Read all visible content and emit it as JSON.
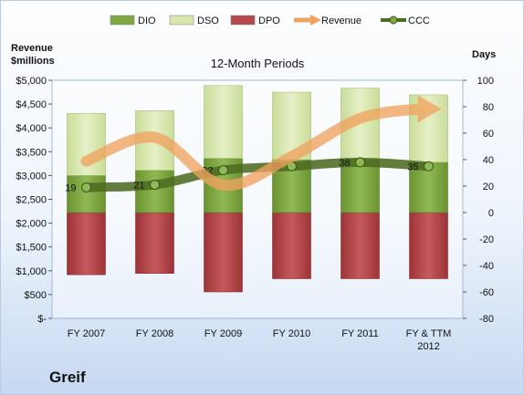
{
  "chart_data": {
    "type": "bar",
    "title": "12-Month Periods",
    "company": "Greif",
    "left_axis_label": [
      "Revenue",
      "$millions"
    ],
    "right_axis_label": "Days",
    "categories": [
      [
        "FY 2007"
      ],
      [
        "FY 2008"
      ],
      [
        "FY 2009"
      ],
      [
        "FY 2010"
      ],
      [
        "FY 2011"
      ],
      [
        "FY & TTM",
        "2012"
      ]
    ],
    "left_axis": {
      "min": 0,
      "max": 5000,
      "step": 500,
      "tick_labels": [
        "$-",
        "$500",
        "$1,000",
        "$1,500",
        "$2,000",
        "$2,500",
        "$3,000",
        "$3,500",
        "$4,000",
        "$4,500",
        "$5,000"
      ]
    },
    "right_axis": {
      "min": -80,
      "max": 100,
      "step": 20,
      "tick_labels": [
        "-80",
        "-60",
        "-40",
        "-20",
        "0",
        "20",
        "40",
        "60",
        "80",
        "100"
      ]
    },
    "legend": [
      {
        "name": "DIO",
        "kind": "bar",
        "color": "#7fa843"
      },
      {
        "name": "DSO",
        "kind": "bar",
        "color": "#d6e6ad"
      },
      {
        "name": "DPO",
        "kind": "bar",
        "color": "#b7484b"
      },
      {
        "name": "Revenue",
        "kind": "arrow",
        "color": "#f0a35f"
      },
      {
        "name": "CCC",
        "kind": "line",
        "color": "#4f6b22"
      }
    ],
    "series": [
      {
        "name": "DIO",
        "unit": "days",
        "values": [
          28,
          32,
          41,
          40,
          40,
          38
        ]
      },
      {
        "name": "DSO",
        "unit": "days",
        "values": [
          47,
          45,
          55,
          51,
          54,
          51
        ]
      },
      {
        "name": "DPO",
        "unit": "days",
        "values": [
          -47,
          -46,
          -60,
          -50,
          -50,
          -50
        ]
      },
      {
        "name": "CCC",
        "unit": "days",
        "values": [
          19,
          21,
          32,
          35,
          38,
          35
        ],
        "labels": [
          "19",
          "21",
          "32",
          "35",
          "38",
          "35"
        ]
      },
      {
        "name": "Revenue",
        "unit": "$millions",
        "values": [
          3300,
          3800,
          2800,
          3400,
          4200,
          4400
        ]
      }
    ],
    "legend_position": "top",
    "grid": false
  }
}
